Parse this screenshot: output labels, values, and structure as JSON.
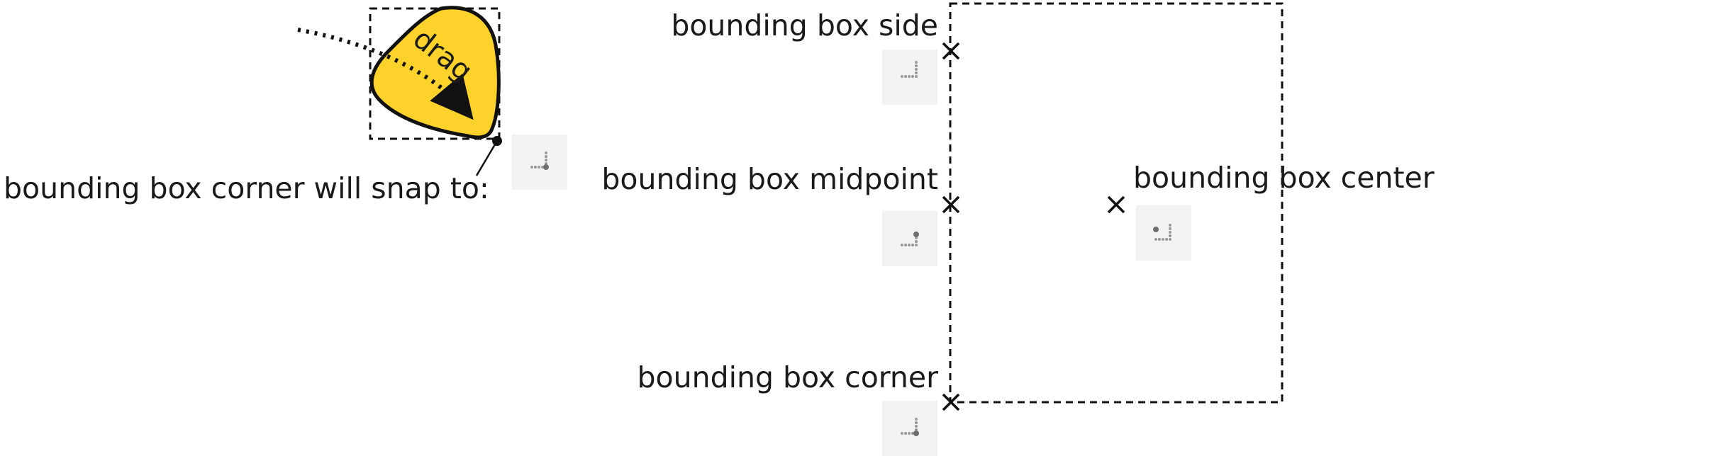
{
  "labels": {
    "drag": "drag",
    "snap_intro": "bounding box corner will snap to:",
    "side": "bounding box side",
    "midpoint": "bounding box midpoint",
    "center": "bounding box center",
    "corner": "bounding box corner"
  },
  "colors": {
    "shape_fill": "#fdd22a",
    "stroke": "#111111",
    "icon_bg": "#f3f2f1",
    "icon_dots": "#9a9a9a"
  },
  "icons": {
    "snap_indicator": "snap-corner-icon",
    "side": "snap-side-icon",
    "midpoint": "snap-midpoint-icon",
    "center": "snap-center-icon",
    "corner": "snap-corner-icon"
  }
}
